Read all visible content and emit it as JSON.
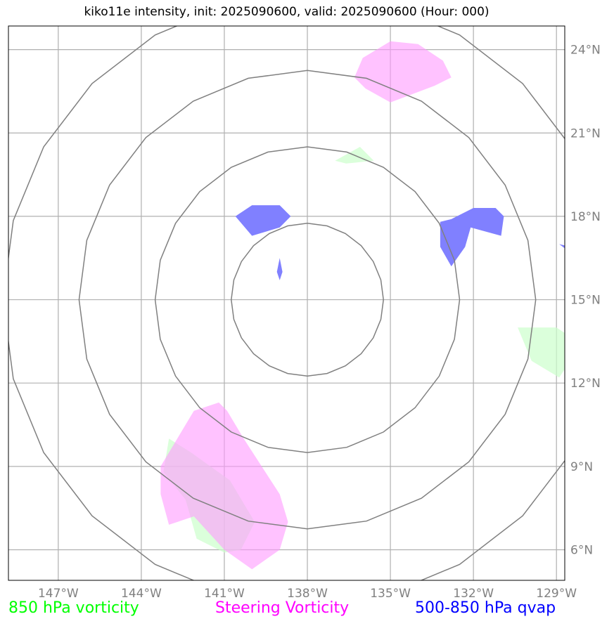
{
  "title": "kiko11e intensity, init: 2025090600, valid: 2025090600 (Hour: 000)",
  "map": {
    "lon_range": [
      -148.8,
      -128.7
    ],
    "lat_range": [
      4.9,
      24.85
    ],
    "lon_ticks": [
      -147,
      -144,
      -141,
      -138,
      -135,
      -132,
      -129
    ],
    "lon_tick_labels": [
      "147°W",
      "144°W",
      "141°W",
      "138°W",
      "135°W",
      "132°W",
      "129°W"
    ],
    "lat_ticks": [
      6,
      9,
      12,
      15,
      18,
      21,
      24
    ],
    "lat_tick_labels": [
      "6°N",
      "9°N",
      "12°N",
      "15°N",
      "18°N",
      "21°N",
      "24°N"
    ],
    "gridline_color": "#b0b0b0",
    "frame_color": "#000000",
    "range_rings": {
      "center": {
        "lon": -138.0,
        "lat": 15.0
      },
      "radii_deg": [
        2.75,
        5.5,
        8.25,
        11.0
      ],
      "color": "#808080"
    },
    "fields": [
      {
        "name": "850 hPa vorticity",
        "color": "#ccffcc",
        "opacity": 0.7,
        "regions": [
          [
            [
              -143.0,
              10.0
            ],
            [
              -142.2,
              9.5
            ],
            [
              -140.8,
              8.5
            ],
            [
              -139.9,
              7.0
            ],
            [
              -140.4,
              6.0
            ],
            [
              -141.0,
              5.9
            ],
            [
              -142.0,
              6.4
            ],
            [
              -142.4,
              7.8
            ],
            [
              -143.2,
              8.8
            ]
          ],
          [
            [
              -137.0,
              20.0
            ],
            [
              -136.1,
              20.5
            ],
            [
              -135.6,
              20.0
            ],
            [
              -136.6,
              19.9
            ]
          ],
          [
            [
              -130.4,
              14.0
            ],
            [
              -129.0,
              14.0
            ],
            [
              -128.7,
              13.8
            ],
            [
              -128.7,
              12.5
            ],
            [
              -128.9,
              12.2
            ],
            [
              -129.9,
              12.8
            ]
          ]
        ]
      },
      {
        "name": "Steering Vorticity",
        "color": "#ff99ff",
        "opacity": 0.6,
        "regions": [
          [
            [
              -142.1,
              11.0
            ],
            [
              -141.2,
              11.3
            ],
            [
              -140.9,
              11.0
            ],
            [
              -140.3,
              10.0
            ],
            [
              -139.0,
              8.0
            ],
            [
              -138.7,
              7.0
            ],
            [
              -139.0,
              6.0
            ],
            [
              -140.0,
              5.3
            ],
            [
              -141.0,
              6.0
            ],
            [
              -142.1,
              7.2
            ],
            [
              -143.0,
              6.9
            ],
            [
              -143.3,
              8.0
            ],
            [
              -143.3,
              9.0
            ]
          ],
          [
            [
              -135.0,
              24.3
            ],
            [
              -134.0,
              24.2
            ],
            [
              -133.1,
              23.6
            ],
            [
              -132.8,
              23.0
            ],
            [
              -133.4,
              22.7
            ],
            [
              -135.0,
              22.1
            ],
            [
              -135.9,
              22.6
            ],
            [
              -136.3,
              23.0
            ],
            [
              -136.0,
              23.7
            ]
          ]
        ]
      },
      {
        "name": "500-850 hPa qvap",
        "color": "#8080ff",
        "opacity": 1.0,
        "regions": [
          [
            [
              -140.6,
              18.0
            ],
            [
              -140.0,
              18.4
            ],
            [
              -139.0,
              18.4
            ],
            [
              -138.6,
              18.0
            ],
            [
              -139.0,
              17.6
            ],
            [
              -140.0,
              17.3
            ]
          ],
          [
            [
              -131.2,
              18.3
            ],
            [
              -132.0,
              18.3
            ],
            [
              -132.0,
              18.3
            ],
            [
              -132.8,
              17.9
            ],
            [
              -133.2,
              17.8
            ],
            [
              -133.2,
              16.9
            ],
            [
              -132.8,
              16.2
            ],
            [
              -132.3,
              16.9
            ],
            [
              -132.1,
              17.6
            ],
            [
              -131.0,
              17.3
            ],
            [
              -130.9,
              18.0
            ]
          ],
          [
            [
              -139.0,
              16.5
            ],
            [
              -138.9,
              16.0
            ],
            [
              -139.0,
              15.7
            ],
            [
              -139.1,
              16.0
            ]
          ],
          [
            [
              -128.9,
              17.0
            ],
            [
              -128.7,
              16.95
            ],
            [
              -128.7,
              16.85
            ]
          ]
        ]
      }
    ]
  },
  "legend": [
    {
      "label": "850 hPa vorticity",
      "color": "#00ff00"
    },
    {
      "label": "Steering Vorticity",
      "color": "#ff00ff"
    },
    {
      "label": "500-850 hPa qvap",
      "color": "#0000ff"
    }
  ]
}
